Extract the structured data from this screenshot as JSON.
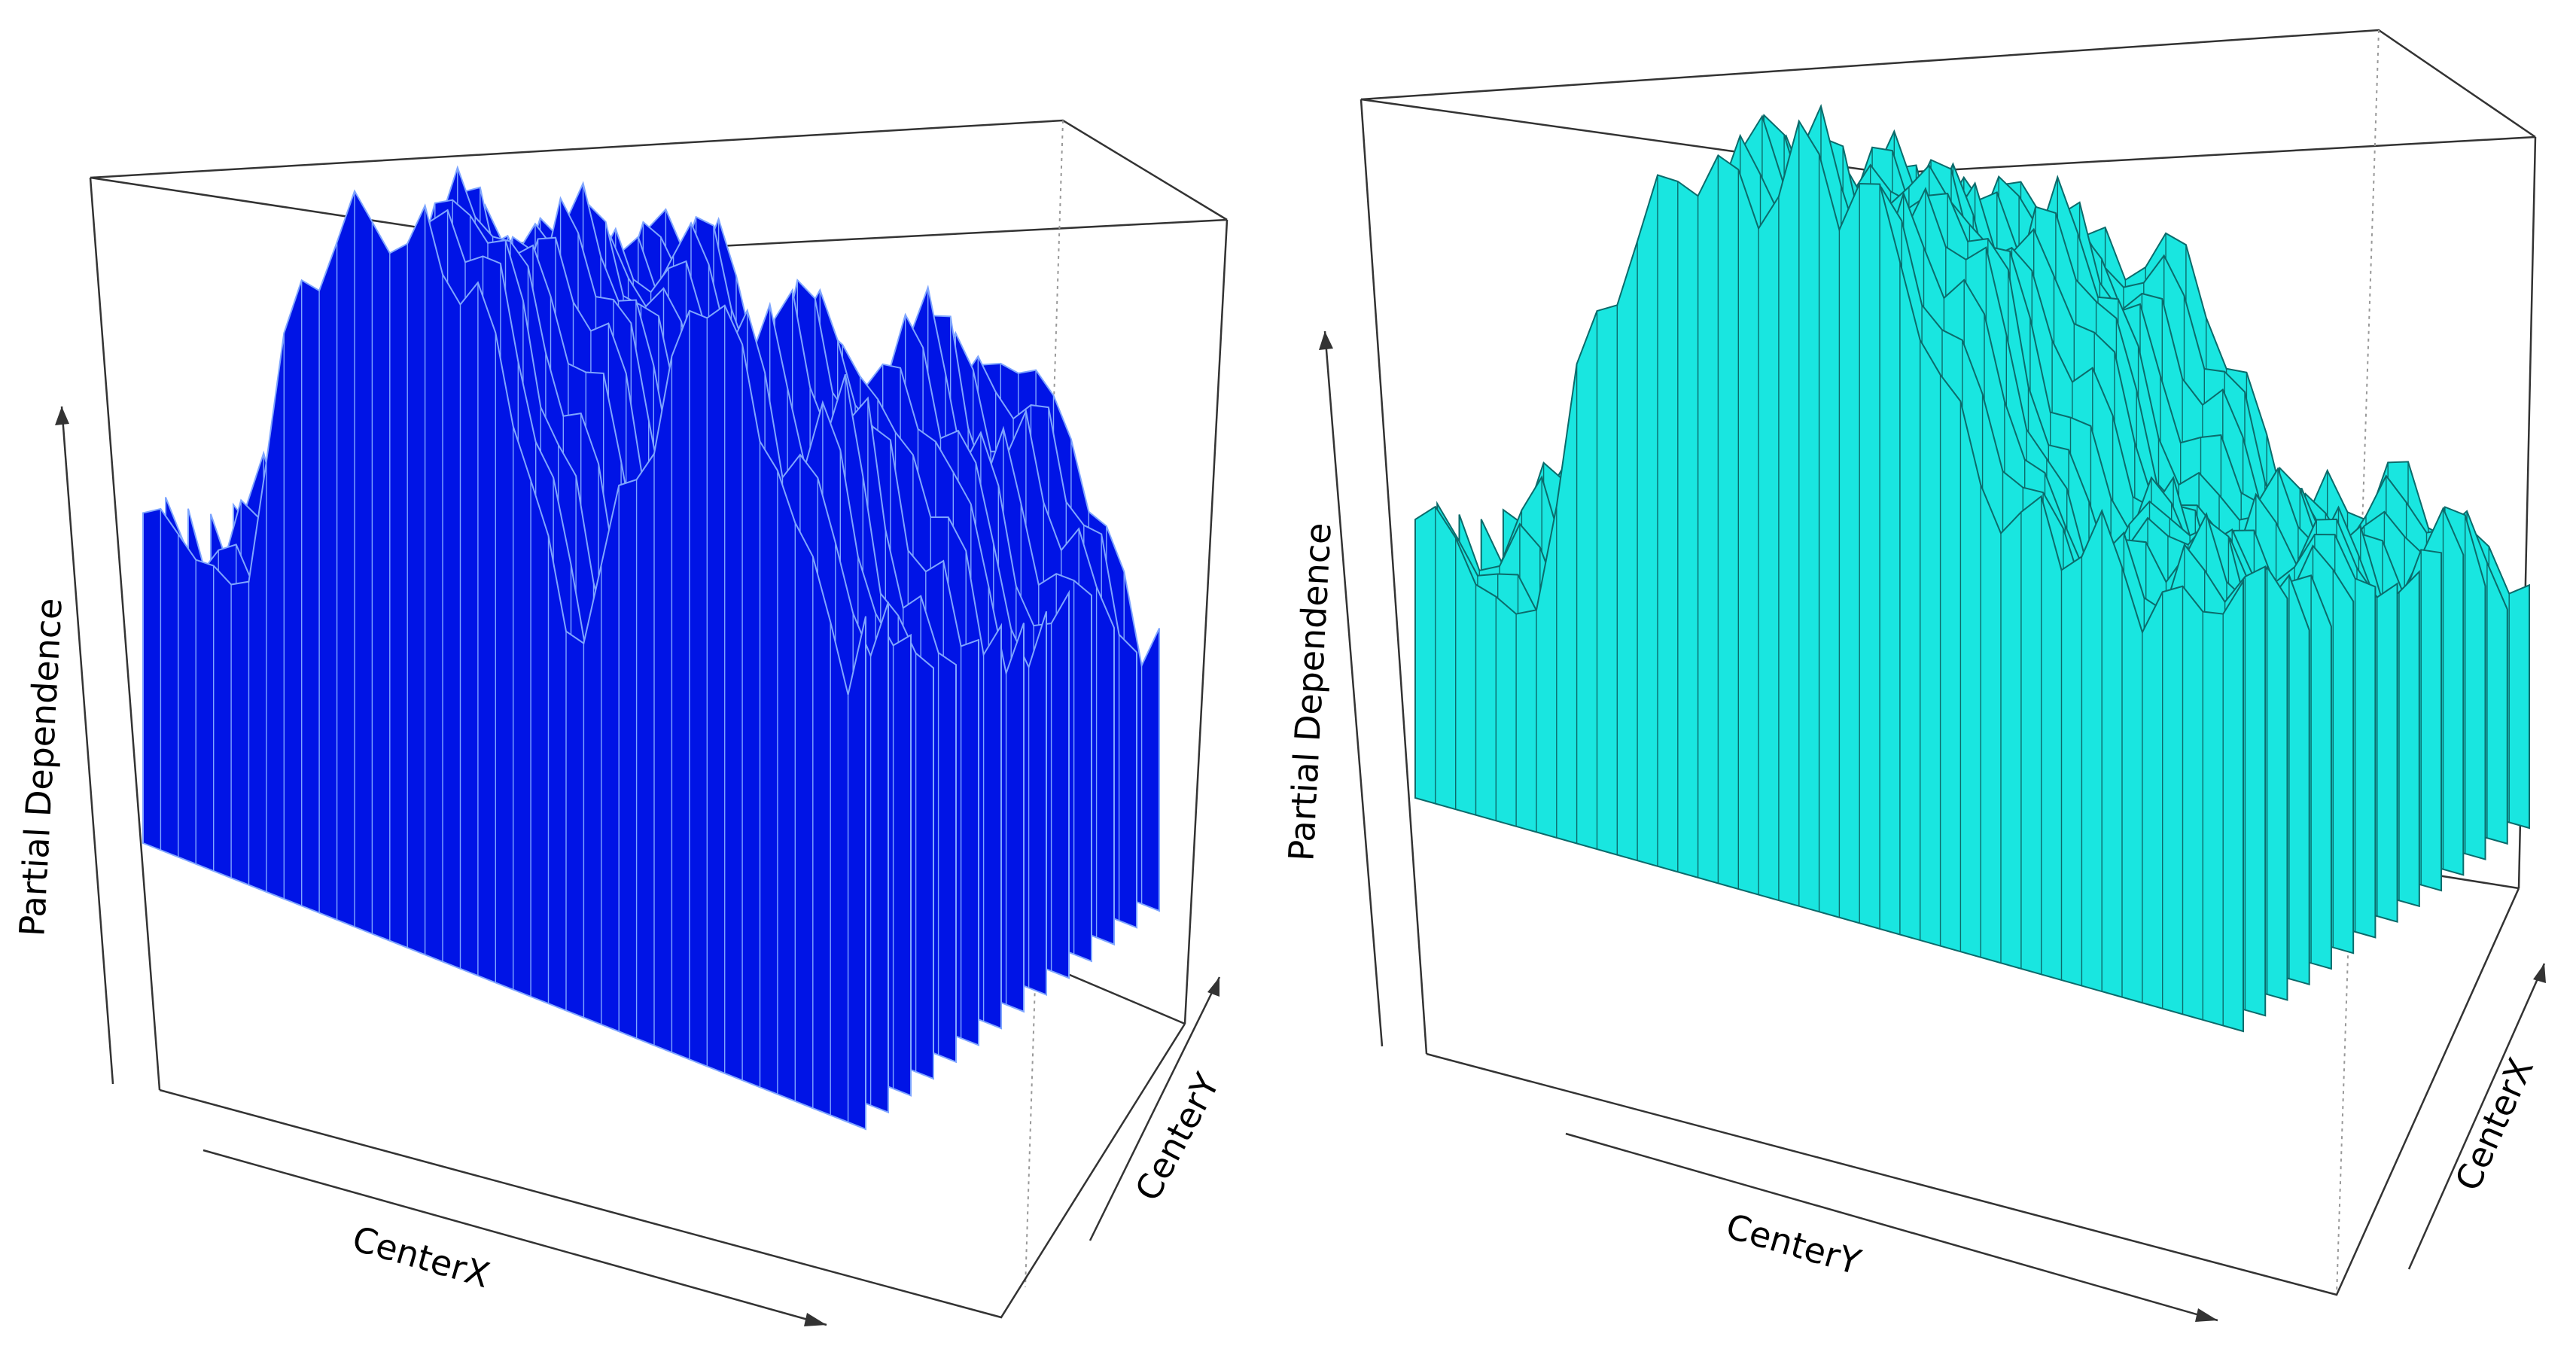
{
  "chart_data": [
    {
      "type": "surface",
      "surface_color": "#0014e6",
      "mesh_color": "#7fa6ff",
      "xlabel": "CenterX",
      "ylabel": "CenterY",
      "zlabel": "Partial Dependence",
      "ridge_profile_front": [
        0.4,
        0.38,
        0.42,
        0.44,
        0.4,
        0.38,
        0.45,
        0.6,
        0.7,
        0.78,
        0.82,
        0.86,
        0.9,
        0.93,
        0.95,
        0.93,
        0.97,
        0.94,
        0.9,
        0.86,
        0.8,
        0.74,
        0.66,
        0.56,
        0.5,
        0.55,
        0.62,
        0.7,
        0.76,
        0.8,
        0.86,
        0.92,
        0.98,
        1.0,
        0.92,
        0.85,
        0.88,
        0.78,
        0.7,
        0.66,
        0.58,
        0.62
      ]
    },
    {
      "type": "surface",
      "surface_color": "#19e6e0",
      "mesh_color": "#0b6b6b",
      "xlabel": "CenterY",
      "ylabel": "CenterX",
      "zlabel": "Partial Dependence",
      "ridge_profile_front": [
        0.34,
        0.33,
        0.36,
        0.35,
        0.3,
        0.28,
        0.35,
        0.48,
        0.6,
        0.68,
        0.74,
        0.8,
        0.86,
        0.92,
        0.96,
        0.98,
        0.95,
        0.93,
        0.97,
        1.0,
        0.96,
        0.92,
        0.97,
        0.94,
        0.9,
        0.86,
        0.78,
        0.72,
        0.66,
        0.6,
        0.56,
        0.58,
        0.55,
        0.57,
        0.6,
        0.58,
        0.56,
        0.58,
        0.55,
        0.56,
        0.57,
        0.55
      ]
    }
  ]
}
